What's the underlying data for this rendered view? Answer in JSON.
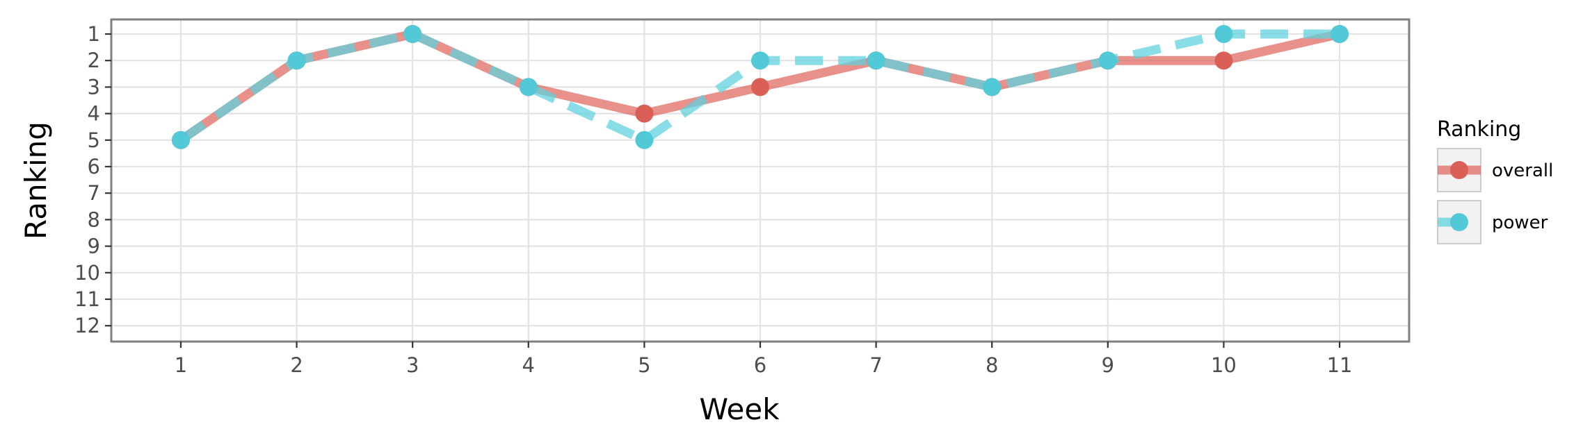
{
  "chart_data": {
    "type": "line",
    "title": "",
    "xlabel": "Week",
    "ylabel": "Ranking",
    "x": [
      1,
      2,
      3,
      4,
      5,
      6,
      7,
      8,
      9,
      10,
      11
    ],
    "x_ticks": [
      "1",
      "2",
      "3",
      "4",
      "5",
      "6",
      "7",
      "8",
      "9",
      "10",
      "11"
    ],
    "y_ticks": [
      "1",
      "2",
      "3",
      "4",
      "5",
      "6",
      "7",
      "8",
      "9",
      "10",
      "11",
      "12"
    ],
    "xlim": [
      0.4,
      11.6
    ],
    "ylim": [
      1,
      12
    ],
    "y_reversed": true,
    "grid": true,
    "series": [
      {
        "name": "overall",
        "color": "#e06b63",
        "point_color": "#d95f57",
        "line_style": "solid",
        "values": [
          5,
          2,
          1,
          3,
          4,
          3,
          2,
          3,
          2,
          2,
          1
        ]
      },
      {
        "name": "power",
        "color": "#62d2dd",
        "point_color": "#52c9d6",
        "line_style": "dashed",
        "values": [
          5,
          2,
          1,
          3,
          5,
          2,
          2,
          3,
          2,
          1,
          1
        ]
      }
    ],
    "legend": {
      "title": "Ranking",
      "placement": "right"
    }
  }
}
